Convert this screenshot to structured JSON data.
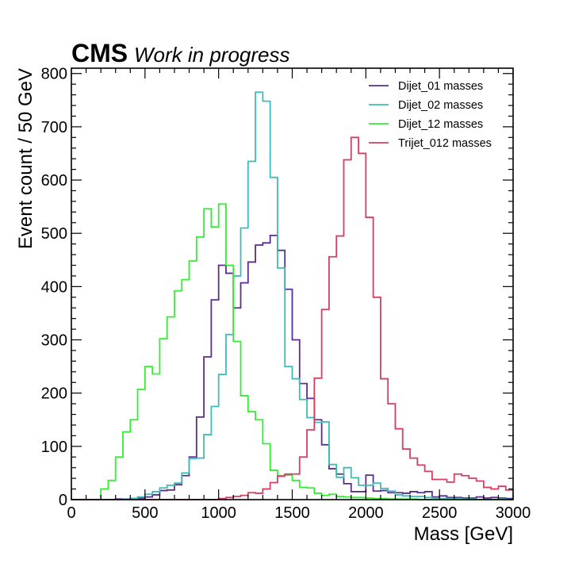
{
  "experiment": {
    "name": "CMS",
    "label": "Work in progress"
  },
  "chart_data": {
    "type": "histogram",
    "xlabel": "Mass [GeV]",
    "ylabel": "Event count / 50 GeV",
    "xlim": [
      0,
      3000
    ],
    "ylim": [
      0,
      810
    ],
    "bin_width": 50,
    "x_start": 0,
    "xticks": [
      0,
      500,
      1000,
      1500,
      2000,
      2500,
      3000
    ],
    "yticks": [
      0,
      100,
      200,
      300,
      400,
      500,
      600,
      700,
      800
    ],
    "xticks_minor_step": 100,
    "yticks_minor_step": 20,
    "legend_position": "top-right",
    "series": [
      {
        "name": "Dijet_01 masses",
        "color": "#5b2d8e",
        "values": [
          0,
          0,
          0,
          0,
          0,
          0,
          1,
          1,
          2,
          3,
          5,
          9,
          17,
          18,
          28,
          45,
          80,
          155,
          268,
          375,
          440,
          425,
          360,
          407,
          446,
          478,
          482,
          496,
          468,
          395,
          300,
          218,
          190,
          150,
          103,
          58,
          48,
          30,
          15,
          15,
          46,
          16,
          17,
          13,
          13,
          12,
          15,
          13,
          15,
          5,
          7,
          4,
          4,
          3,
          3,
          5,
          3,
          4,
          3,
          2
        ]
      },
      {
        "name": "Dijet_02 masses",
        "color": "#3cbdb8",
        "values": [
          0,
          0,
          0,
          0,
          0,
          0,
          0,
          1,
          2,
          5,
          10,
          15,
          22,
          27,
          31,
          50,
          77,
          78,
          122,
          175,
          235,
          310,
          420,
          510,
          635,
          765,
          748,
          605,
          435,
          250,
          227,
          188,
          154,
          145,
          146,
          66,
          42,
          60,
          41,
          27,
          27,
          31,
          21,
          16,
          9,
          7,
          6,
          6,
          4,
          3,
          2,
          2,
          2,
          1,
          1,
          0,
          0,
          0,
          1,
          0
        ]
      },
      {
        "name": "Dijet_12 masses",
        "color": "#33ee33",
        "values": [
          0,
          0,
          0,
          0,
          20,
          36,
          80,
          127,
          150,
          207,
          250,
          236,
          302,
          343,
          392,
          413,
          448,
          493,
          546,
          512,
          555,
          440,
          297,
          195,
          165,
          150,
          105,
          55,
          45,
          46,
          36,
          23,
          22,
          12,
          8,
          10,
          6,
          5,
          4,
          4,
          3,
          2,
          2,
          1,
          1,
          1,
          1,
          0,
          0,
          0,
          0,
          0,
          0,
          0,
          0,
          0,
          0,
          0,
          0,
          0
        ]
      },
      {
        "name": "Trijet_012 masses",
        "color": "#d63e62",
        "values": [
          0,
          0,
          0,
          0,
          0,
          0,
          0,
          0,
          0,
          0,
          0,
          0,
          0,
          0,
          0,
          0,
          0,
          0,
          0,
          0,
          2,
          4,
          6,
          8,
          13,
          12,
          20,
          32,
          44,
          48,
          48,
          80,
          131,
          228,
          357,
          456,
          495,
          638,
          680,
          650,
          530,
          380,
          227,
          180,
          133,
          95,
          78,
          65,
          53,
          38,
          38,
          33,
          48,
          45,
          40,
          35,
          23,
          20,
          25,
          18
        ]
      }
    ]
  }
}
